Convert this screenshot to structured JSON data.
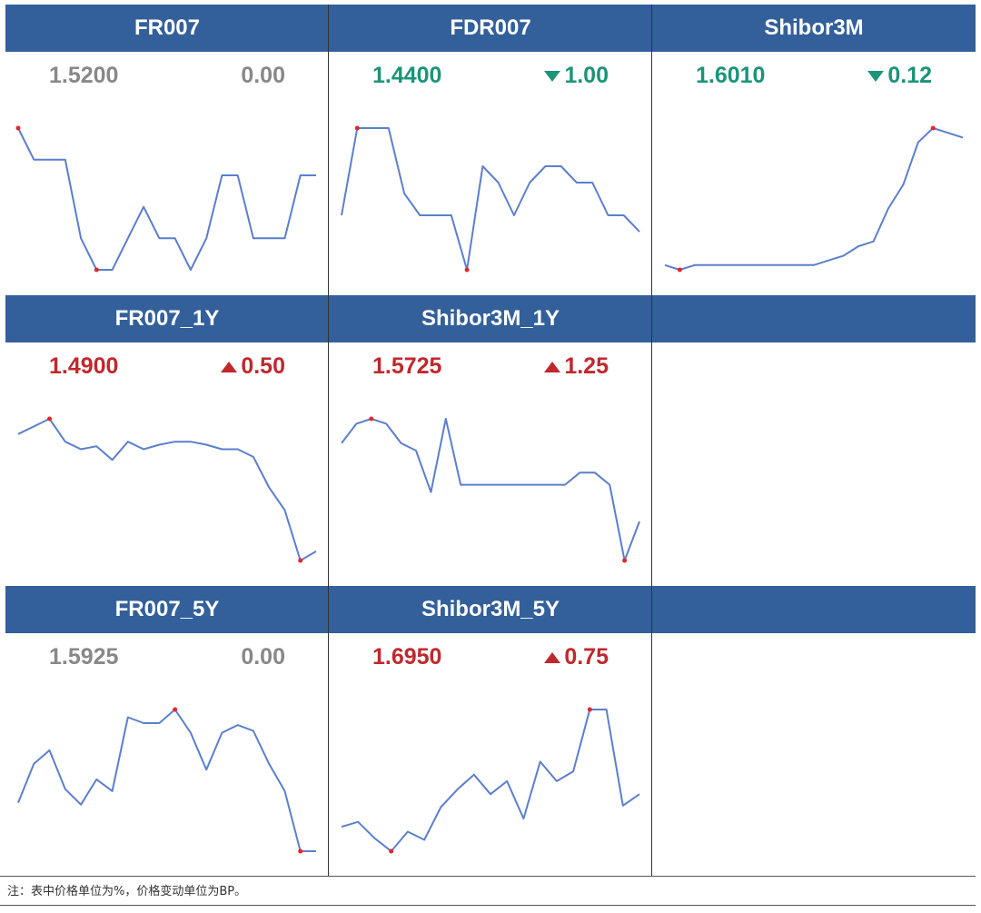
{
  "colors": {
    "header_bg": "#33609a",
    "line": "#5b7fcc",
    "marker": "#e0282a",
    "up": "#c0282c",
    "down": "#1b9479",
    "flat": "#888888"
  },
  "note": "注：表中价格单位为%，价格变动单位为BP。",
  "chart_data": [
    {
      "type": "line",
      "title": "FR007",
      "value": "1.5200",
      "change": "0.00",
      "direction": "flat",
      "y": [
        1.56,
        1.54,
        1.54,
        1.54,
        1.49,
        1.47,
        1.47,
        1.49,
        1.51,
        1.49,
        1.49,
        1.47,
        1.49,
        1.53,
        1.53,
        1.49,
        1.49,
        1.49,
        1.53,
        1.53
      ],
      "markers": [
        "max",
        "min"
      ]
    },
    {
      "type": "line",
      "title": "FDR007",
      "value": "1.4400",
      "change": "1.00",
      "direction": "down",
      "y": [
        1.4,
        1.56,
        1.56,
        1.56,
        1.44,
        1.4,
        1.4,
        1.4,
        1.3,
        1.49,
        1.46,
        1.4,
        1.46,
        1.49,
        1.49,
        1.46,
        1.46,
        1.4,
        1.4,
        1.37
      ],
      "markers": [
        "max",
        "min"
      ]
    },
    {
      "type": "line",
      "title": "Shibor3M",
      "value": "1.6010",
      "change": "0.12",
      "direction": "down",
      "y": [
        1.548,
        1.547,
        1.548,
        1.548,
        1.548,
        1.548,
        1.548,
        1.548,
        1.548,
        1.548,
        1.548,
        1.549,
        1.55,
        1.552,
        1.553,
        1.56,
        1.565,
        1.574,
        1.577,
        1.576,
        1.575
      ],
      "markers": [
        "max",
        "min"
      ]
    },
    {
      "type": "line",
      "title": "FR007_1Y",
      "value": "1.4900",
      "change": "0.50",
      "direction": "up",
      "y": [
        1.545,
        1.55,
        1.555,
        1.54,
        1.535,
        1.537,
        1.528,
        1.54,
        1.535,
        1.538,
        1.54,
        1.54,
        1.538,
        1.535,
        1.535,
        1.53,
        1.51,
        1.495,
        1.462,
        1.468
      ],
      "markers": [
        "max",
        "min"
      ]
    },
    {
      "type": "line",
      "title": "Shibor3M_1Y",
      "value": "1.5725",
      "change": "1.25",
      "direction": "up",
      "y": [
        1.61,
        1.618,
        1.62,
        1.618,
        1.61,
        1.607,
        1.59,
        1.62,
        1.593,
        1.593,
        1.593,
        1.593,
        1.593,
        1.593,
        1.593,
        1.593,
        1.598,
        1.598,
        1.593,
        1.562,
        1.578
      ],
      "markers": [
        "max",
        "min"
      ]
    },
    {
      "type": "line",
      "title": "FR007_5Y",
      "value": "1.5925",
      "change": "0.00",
      "direction": "flat",
      "y": [
        1.62,
        1.64,
        1.647,
        1.627,
        1.619,
        1.632,
        1.626,
        1.664,
        1.661,
        1.661,
        1.668,
        1.656,
        1.637,
        1.656,
        1.66,
        1.657,
        1.64,
        1.626,
        1.595,
        1.595
      ],
      "markers": [
        "max",
        "min"
      ]
    },
    {
      "type": "line",
      "title": "Shibor3M_5Y",
      "value": "1.6950",
      "change": "0.75",
      "direction": "up",
      "y": [
        1.68,
        1.683,
        1.673,
        1.665,
        1.677,
        1.672,
        1.692,
        1.703,
        1.712,
        1.7,
        1.708,
        1.685,
        1.72,
        1.708,
        1.714,
        1.752,
        1.752,
        1.693,
        1.7
      ],
      "markers": [
        "max",
        "min"
      ]
    }
  ]
}
